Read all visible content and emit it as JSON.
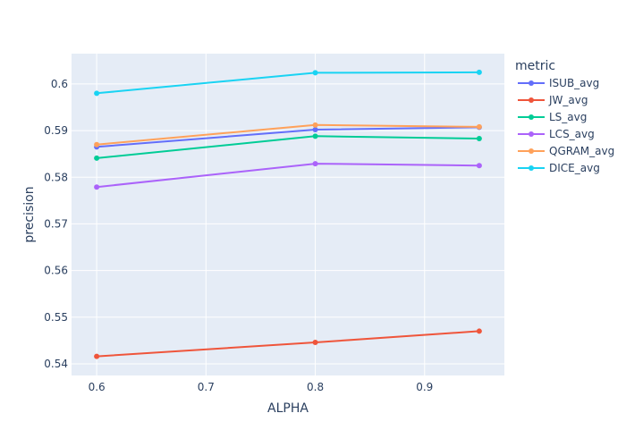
{
  "chart_data": {
    "type": "line",
    "xlabel": "ALPHA",
    "ylabel": "precision",
    "xlim": [
      0.577,
      0.973
    ],
    "ylim": [
      0.5375,
      0.6065
    ],
    "x_ticks": [
      "0.6",
      "0.7",
      "0.8",
      "0.9"
    ],
    "y_ticks": [
      "0.54",
      "0.55",
      "0.56",
      "0.57",
      "0.58",
      "0.59",
      "0.6"
    ],
    "grid": true,
    "legend_title": "metric",
    "legend_position": "right",
    "x": [
      0.6,
      0.8,
      0.95
    ],
    "series": [
      {
        "name": "ISUB_avg",
        "color": "#636efa",
        "values": [
          0.5865,
          0.5902,
          0.5907
        ]
      },
      {
        "name": "JW_avg",
        "color": "#EF553B",
        "values": [
          0.5416,
          0.5446,
          0.547
        ]
      },
      {
        "name": "LS_avg",
        "color": "#00cc96",
        "values": [
          0.5841,
          0.5888,
          0.5883
        ]
      },
      {
        "name": "LCS_avg",
        "color": "#ab63fa",
        "values": [
          0.5779,
          0.5829,
          0.5825
        ]
      },
      {
        "name": "QGRAM_avg",
        "color": "#FFA15A",
        "values": [
          0.587,
          0.5912,
          0.5908
        ]
      },
      {
        "name": "DICE_avg",
        "color": "#19d3f3",
        "values": [
          0.598,
          0.6024,
          0.6025
        ]
      }
    ]
  }
}
